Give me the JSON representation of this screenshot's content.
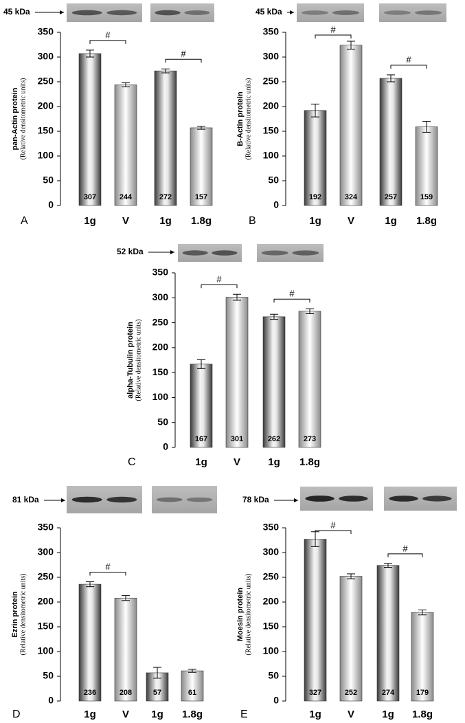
{
  "chart_data": [
    {
      "type": "bar",
      "panel": "A",
      "marker": "45 kDa",
      "ylabel": "pan-Actin protein",
      "ylabel_sub": "(Relative densitometric units)",
      "categories": [
        "1g",
        "V",
        "1g",
        "1.8g"
      ],
      "values": [
        307,
        244,
        272,
        157
      ],
      "errors": [
        7,
        4,
        4,
        3
      ],
      "ylim": [
        0,
        350
      ],
      "yticks": [
        0,
        50,
        100,
        150,
        200,
        250,
        300,
        350
      ],
      "annotations": [
        {
          "text": "#",
          "bars": [
            0,
            1
          ]
        },
        {
          "text": "#",
          "bars": [
            2,
            3
          ]
        }
      ]
    },
    {
      "type": "bar",
      "panel": "B",
      "marker": "45 kDa",
      "ylabel": "B-Actin protein",
      "ylabel_sub": "(Relative densitometric units)",
      "categories": [
        "1g",
        "V",
        "1g",
        "1.8g"
      ],
      "values": [
        192,
        324,
        257,
        159
      ],
      "errors": [
        13,
        8,
        7,
        11
      ],
      "ylim": [
        0,
        350
      ],
      "yticks": [
        0,
        50,
        100,
        150,
        200,
        250,
        300,
        350
      ],
      "annotations": [
        {
          "text": "#",
          "bars": [
            0,
            1
          ]
        },
        {
          "text": "#",
          "bars": [
            2,
            3
          ]
        }
      ]
    },
    {
      "type": "bar",
      "panel": "C",
      "marker": "52 kDa",
      "ylabel": "alpha-Tubulin protein",
      "ylabel_sub": "(Relative densitometric units)",
      "categories": [
        "1g",
        "V",
        "1g",
        "1.8g"
      ],
      "values": [
        167,
        301,
        262,
        273
      ],
      "errors": [
        9,
        6,
        5,
        5
      ],
      "ylim": [
        0,
        350
      ],
      "yticks": [
        0,
        50,
        100,
        150,
        200,
        250,
        300,
        350
      ],
      "annotations": [
        {
          "text": "#",
          "bars": [
            0,
            1
          ]
        },
        {
          "text": "#",
          "bars": [
            2,
            3
          ]
        }
      ]
    },
    {
      "type": "bar",
      "panel": "D",
      "marker": "81 kDa",
      "ylabel": "Ezrin protein",
      "ylabel_sub": "(Relative densitometric units)",
      "categories": [
        "1g",
        "V",
        "1g",
        "1.8g"
      ],
      "values": [
        236,
        208,
        57,
        61
      ],
      "errors": [
        5,
        5,
        11,
        3
      ],
      "ylim": [
        0,
        350
      ],
      "yticks": [
        0,
        50,
        100,
        150,
        200,
        250,
        300,
        350
      ],
      "annotations": [
        {
          "text": "#",
          "bars": [
            0,
            1
          ]
        }
      ]
    },
    {
      "type": "bar",
      "panel": "E",
      "marker": "78 kDa",
      "ylabel": "Moesin protein",
      "ylabel_sub": "(Relative densitometric units)",
      "categories": [
        "1g",
        "V",
        "1g",
        "1.8g"
      ],
      "values": [
        327,
        252,
        274,
        179
      ],
      "errors": [
        15,
        5,
        4,
        5
      ],
      "ylim": [
        0,
        350
      ],
      "yticks": [
        0,
        50,
        100,
        150,
        200,
        250,
        300,
        350
      ],
      "annotations": [
        {
          "text": "#",
          "bars": [
            0,
            1
          ]
        },
        {
          "text": "#",
          "bars": [
            2,
            3
          ]
        }
      ]
    }
  ]
}
